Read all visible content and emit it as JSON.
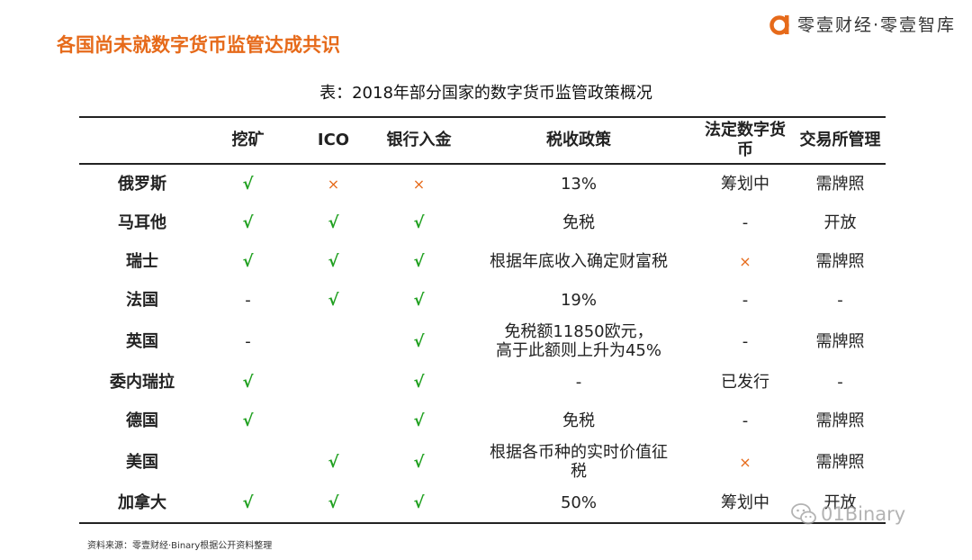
{
  "header": {
    "headline": "各国尚未就数字货币监管达成共识",
    "brand": "零壹财经·零壹智库",
    "brand_logo_icon": "orange-a-logo-icon",
    "accent_color": "#e66a1a"
  },
  "table": {
    "caption": "表：2018年部分国家的数字货币监管政策概况",
    "columns": [
      "",
      "挖矿",
      "ICO",
      "银行入金",
      "税收政策",
      "法定数字货币",
      "交易所管理"
    ],
    "marks": {
      "check": "√",
      "cross": "×",
      "dash": "-"
    },
    "mark_colors": {
      "check": "#20a020",
      "cross": "#e66a1a"
    },
    "rows": [
      {
        "country": "俄罗斯",
        "mining": "√",
        "ico": "×",
        "bank": "×",
        "tax": "13%",
        "cbdc": "筹划中",
        "exchange": "需牌照"
      },
      {
        "country": "马耳他",
        "mining": "√",
        "ico": "√",
        "bank": "√",
        "tax": "免税",
        "cbdc": "-",
        "exchange": "开放"
      },
      {
        "country": "瑞士",
        "mining": "√",
        "ico": "√",
        "bank": "√",
        "tax": "根据年底收入确定财富税",
        "cbdc": "×",
        "exchange": "需牌照"
      },
      {
        "country": "法国",
        "mining": "-",
        "ico": "√",
        "bank": "√",
        "tax": "19%",
        "cbdc": "-",
        "exchange": "-"
      },
      {
        "country": "英国",
        "mining": "-",
        "ico": "",
        "bank": "√",
        "tax": "免税额11850欧元，",
        "tax_line2": "高于此额则上升为45%",
        "cbdc": "-",
        "exchange": "需牌照"
      },
      {
        "country": "委内瑞拉",
        "mining": "√",
        "ico": "",
        "bank": "√",
        "tax": "-",
        "cbdc": "已发行",
        "exchange": "-"
      },
      {
        "country": "德国",
        "mining": "√",
        "ico": "",
        "bank": "√",
        "tax": "免税",
        "cbdc": "-",
        "exchange": "需牌照"
      },
      {
        "country": "美国",
        "mining": "",
        "ico": "√",
        "bank": "√",
        "tax": "根据各币种的实时价值征",
        "tax_line2": "税",
        "cbdc": "×",
        "exchange": "需牌照"
      },
      {
        "country": "加拿大",
        "mining": "√",
        "ico": "√",
        "bank": "√",
        "tax": "50%",
        "cbdc": "筹划中",
        "exchange": "开放"
      }
    ]
  },
  "footer": {
    "source": "资料来源：零壹财经·Binary根据公开资料整理",
    "watermark": "01Binary",
    "watermark_icon": "wechat-icon"
  }
}
